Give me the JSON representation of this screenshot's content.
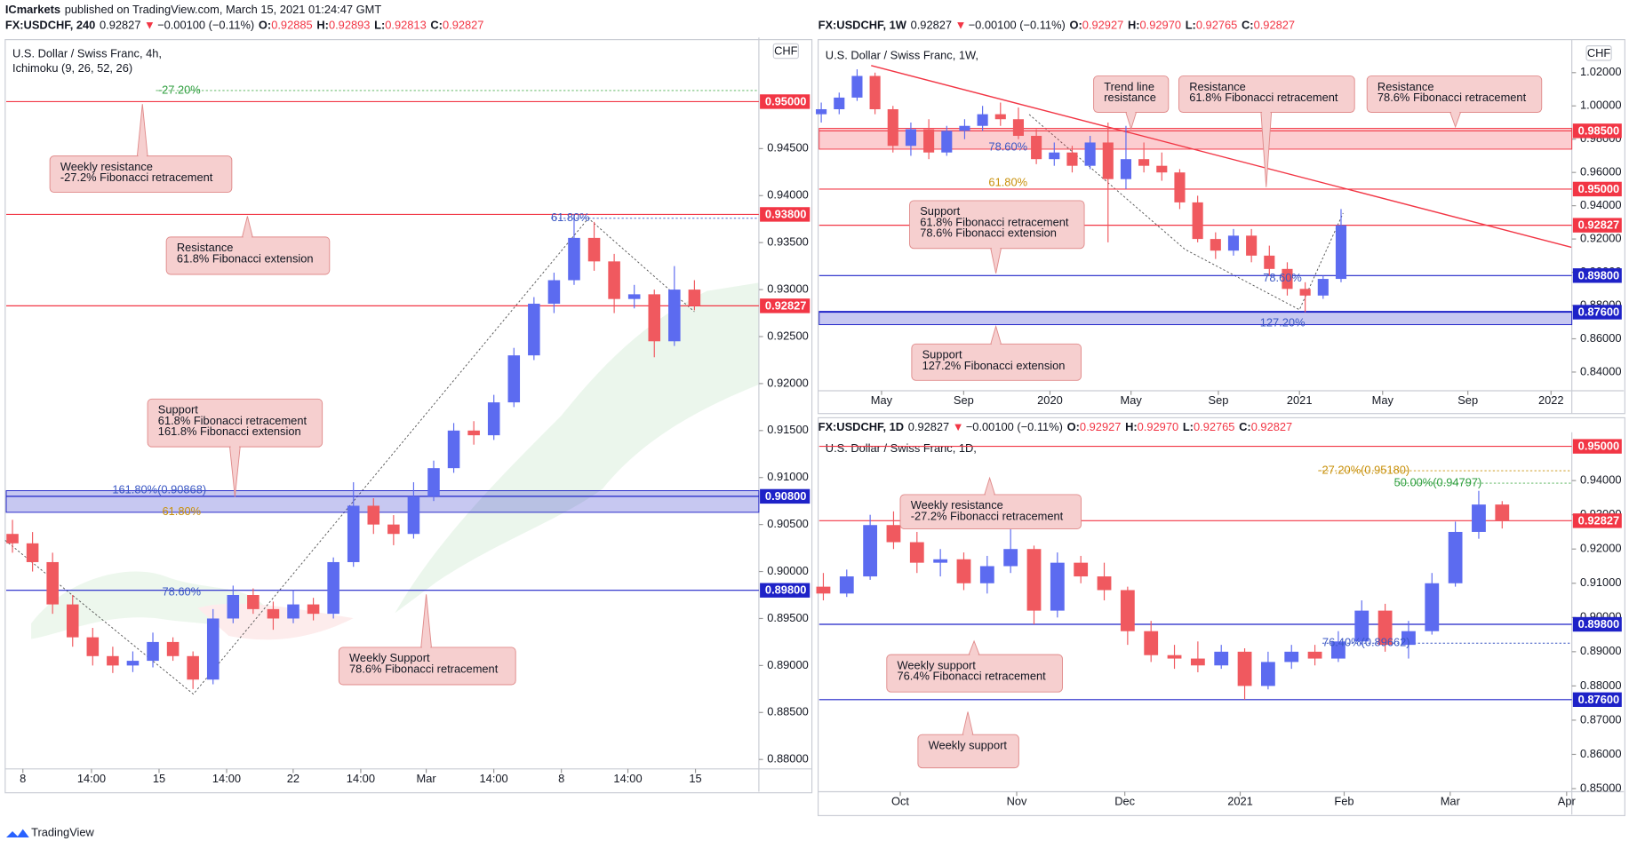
{
  "header": {
    "publisher": "ICmarkets",
    "published": "published on TradingView.com, March 15, 2021 01:24:47 GMT"
  },
  "footer": {
    "brand": "TradingView"
  },
  "charts": [
    {
      "symbol_line": {
        "symbol": "FX:USDCHF, 240",
        "price": "0.92827",
        "arrow": "▼",
        "change": "−0.00100 (−0.11%)",
        "ohlc": [
          {
            "label": "O:",
            "value": "0.92885"
          },
          {
            "label": "H:",
            "value": "0.92893"
          },
          {
            "label": "L:",
            "value": "0.92813"
          },
          {
            "label": "C:",
            "value": "0.92827"
          }
        ]
      },
      "title": "U.S. Dollar / Swiss Franc, 4h,",
      "indicator": "Ichimoku (9, 26, 52, 26)",
      "currency": "CHF",
      "ylim": [
        0.879,
        0.9566
      ],
      "yticks": [
        {
          "value": 0.88,
          "label": "0.88000"
        },
        {
          "value": 0.885,
          "label": "0.88500"
        },
        {
          "value": 0.89,
          "label": "0.89000"
        },
        {
          "value": 0.895,
          "label": "0.89500"
        },
        {
          "value": 0.9,
          "label": "0.90000"
        },
        {
          "value": 0.905,
          "label": "0.90500"
        },
        {
          "value": 0.91,
          "label": "0.91000"
        },
        {
          "value": 0.915,
          "label": "0.91500"
        },
        {
          "value": 0.92,
          "label": "0.92000"
        },
        {
          "value": 0.925,
          "label": "0.92500"
        },
        {
          "value": 0.93,
          "label": "0.93000"
        },
        {
          "value": 0.935,
          "label": "0.93500"
        },
        {
          "value": 0.94,
          "label": "0.94000"
        },
        {
          "value": 0.945,
          "label": "0.94500"
        }
      ],
      "xticks": [
        "8",
        "14:00",
        "15",
        "14:00",
        "22",
        "14:00",
        "Mar",
        "14:00",
        "8",
        "14:00",
        "15"
      ],
      "up_color": "#5c6bf0",
      "down_color": "#f0595f",
      "candles": [
        [
          0.904,
          0.9055,
          0.902,
          0.903
        ],
        [
          0.903,
          0.9042,
          0.9,
          0.901
        ],
        [
          0.901,
          0.902,
          0.8955,
          0.8965
        ],
        [
          0.8965,
          0.8975,
          0.892,
          0.893
        ],
        [
          0.893,
          0.894,
          0.89,
          0.891
        ],
        [
          0.891,
          0.892,
          0.8892,
          0.89
        ],
        [
          0.89,
          0.8915,
          0.8893,
          0.8905
        ],
        [
          0.8905,
          0.8935,
          0.8898,
          0.8925
        ],
        [
          0.8925,
          0.893,
          0.8905,
          0.891
        ],
        [
          0.891,
          0.8915,
          0.8875,
          0.8885
        ],
        [
          0.8885,
          0.896,
          0.888,
          0.895
        ],
        [
          0.895,
          0.8985,
          0.8945,
          0.8975
        ],
        [
          0.8975,
          0.8982,
          0.8955,
          0.896
        ],
        [
          0.896,
          0.8968,
          0.8938,
          0.895
        ],
        [
          0.895,
          0.898,
          0.8945,
          0.8965
        ],
        [
          0.8965,
          0.8972,
          0.8948,
          0.8955
        ],
        [
          0.8955,
          0.9015,
          0.895,
          0.901
        ],
        [
          0.901,
          0.9095,
          0.9005,
          0.907
        ],
        [
          0.907,
          0.9078,
          0.904,
          0.905
        ],
        [
          0.905,
          0.906,
          0.9028,
          0.904
        ],
        [
          0.904,
          0.9095,
          0.9035,
          0.908
        ],
        [
          0.908,
          0.9118,
          0.9075,
          0.911
        ],
        [
          0.911,
          0.9158,
          0.9105,
          0.915
        ],
        [
          0.915,
          0.916,
          0.9135,
          0.9145
        ],
        [
          0.9145,
          0.9188,
          0.914,
          0.918
        ],
        [
          0.918,
          0.9238,
          0.9175,
          0.923
        ],
        [
          0.923,
          0.9292,
          0.9225,
          0.9285
        ],
        [
          0.9285,
          0.9318,
          0.9275,
          0.931
        ],
        [
          0.931,
          0.938,
          0.9305,
          0.9355
        ],
        [
          0.9355,
          0.9372,
          0.932,
          0.933
        ],
        [
          0.933,
          0.9338,
          0.9275,
          0.929
        ],
        [
          0.929,
          0.9305,
          0.928,
          0.9295
        ],
        [
          0.9295,
          0.93,
          0.9228,
          0.9245
        ],
        [
          0.9245,
          0.9325,
          0.924,
          0.93
        ],
        [
          0.93,
          0.931,
          0.9278,
          0.92827
        ]
      ],
      "levels": [
        {
          "value": 0.95,
          "label": "0.95000",
          "color": "#f23645"
        },
        {
          "value": 0.938,
          "label": "0.93800",
          "color": "#f23645"
        },
        {
          "value": 0.92827,
          "label": "0.92827",
          "color": "#f23645"
        },
        {
          "value": 0.908,
          "label": "0.90800",
          "color": "#1e22c8",
          "band": [
            0.9063,
            0.9086
          ]
        },
        {
          "value": 0.898,
          "label": "0.89800",
          "color": "#1e22c8"
        }
      ],
      "fib_labels": [
        {
          "text": "-27.20%",
          "color": "#2e9e3e"
        },
        {
          "text": "61.80%",
          "color": "#3a57c4"
        },
        {
          "text": "161.80%(0.90868)",
          "color": "#3a57c4"
        },
        {
          "text": "61.80%",
          "color": "#c8900a"
        },
        {
          "text": "78.60%",
          "color": "#3a57c4"
        }
      ],
      "callouts": [
        {
          "lines": [
            "Weekly resistance",
            "-27.2% Fibonacci retracement"
          ]
        },
        {
          "lines": [
            "Resistance",
            "61.8% Fibonacci extension"
          ]
        },
        {
          "lines": [
            "Support",
            "61.8% Fibonacci retracement",
            "161.8% Fibonacci extension"
          ]
        },
        {
          "lines": [
            "Weekly Support",
            "78.6% Fibonacci retracement"
          ]
        }
      ]
    },
    {
      "symbol_line": {
        "symbol": "FX:USDCHF, 1W",
        "price": "0.92827",
        "arrow": "▼",
        "change": "−0.00100 (−0.11%)",
        "ohlc": [
          {
            "label": "O:",
            "value": "0.92927"
          },
          {
            "label": "H:",
            "value": "0.92970"
          },
          {
            "label": "L:",
            "value": "0.92765"
          },
          {
            "label": "C:",
            "value": "0.92827"
          }
        ]
      },
      "title": "U.S. Dollar / Swiss Franc, 1W,",
      "currency": "CHF",
      "ylim": [
        0.8294,
        1.0386
      ],
      "yticks": [
        {
          "value": 0.84,
          "label": "0.84000"
        },
        {
          "value": 0.86,
          "label": "0.86000"
        },
        {
          "value": 0.88,
          "label": "0.88000"
        },
        {
          "value": 0.9,
          "label": "0.90000"
        },
        {
          "value": 0.92,
          "label": "0.92000"
        },
        {
          "value": 0.94,
          "label": "0.94000"
        },
        {
          "value": 0.96,
          "label": "0.96000"
        },
        {
          "value": 0.98,
          "label": "0.98000"
        },
        {
          "value": 1,
          "label": "1.00000"
        },
        {
          "value": 1.02,
          "label": "1.02000"
        }
      ],
      "xticks": [
        "May",
        "Sep",
        "2020",
        "May",
        "Sep",
        "2021",
        "May",
        "Sep",
        "2022"
      ],
      "up_color": "#5c6bf0",
      "down_color": "#f0595f",
      "candles": [
        [
          0.995,
          1.002,
          0.99,
          0.998
        ],
        [
          0.998,
          1.008,
          0.995,
          1.005
        ],
        [
          1.005,
          1.022,
          1.003,
          1.018
        ],
        [
          1.018,
          1.02,
          0.995,
          0.998
        ],
        [
          0.998,
          1,
          0.972,
          0.976
        ],
        [
          0.976,
          0.99,
          0.97,
          0.986
        ],
        [
          0.986,
          0.992,
          0.968,
          0.972
        ],
        [
          0.972,
          0.988,
          0.97,
          0.985
        ],
        [
          0.985,
          0.992,
          0.98,
          0.988
        ],
        [
          0.988,
          1,
          0.985,
          0.995
        ],
        [
          0.995,
          1.002,
          0.988,
          0.992
        ],
        [
          0.992,
          0.999,
          0.98,
          0.982
        ],
        [
          0.982,
          0.986,
          0.965,
          0.968
        ],
        [
          0.968,
          0.978,
          0.964,
          0.972
        ],
        [
          0.972,
          0.976,
          0.96,
          0.964
        ],
        [
          0.964,
          0.982,
          0.962,
          0.978
        ],
        [
          0.978,
          0.99,
          0.918,
          0.956
        ],
        [
          0.956,
          0.988,
          0.95,
          0.968
        ],
        [
          0.968,
          0.978,
          0.96,
          0.964
        ],
        [
          0.964,
          0.972,
          0.955,
          0.96
        ],
        [
          0.96,
          0.962,
          0.938,
          0.942
        ],
        [
          0.942,
          0.946,
          0.918,
          0.92
        ],
        [
          0.92,
          0.924,
          0.908,
          0.913
        ],
        [
          0.913,
          0.926,
          0.91,
          0.922
        ],
        [
          0.922,
          0.926,
          0.906,
          0.91
        ],
        [
          0.91,
          0.916,
          0.898,
          0.902
        ],
        [
          0.902,
          0.906,
          0.886,
          0.89
        ],
        [
          0.89,
          0.894,
          0.876,
          0.886
        ],
        [
          0.886,
          0.898,
          0.884,
          0.896
        ],
        [
          0.896,
          0.938,
          0.894,
          0.92827
        ]
      ],
      "levels": [
        {
          "value": 0.985,
          "label": "0.98500",
          "color": "#f23645",
          "band": [
            0.974,
            0.9865
          ]
        },
        {
          "value": 0.95,
          "label": "0.95000",
          "color": "#f23645"
        },
        {
          "value": 0.92827,
          "label": "0.92827",
          "color": "#f23645"
        },
        {
          "value": 0.898,
          "label": "0.89800",
          "color": "#1e22c8"
        },
        {
          "value": 0.876,
          "label": "0.87600",
          "color": "#1e22c8",
          "band": [
            0.8685,
            0.8765
          ]
        }
      ],
      "fib_labels": [
        {
          "text": "78.60%",
          "color": "#3a57c4"
        },
        {
          "text": "61.80%",
          "color": "#c8900a"
        },
        {
          "text": "78.60%",
          "color": "#3a57c4"
        },
        {
          "text": "127.20%",
          "color": "#3a57c4"
        }
      ],
      "callouts": [
        {
          "lines": [
            "Trend line",
            "resistance"
          ]
        },
        {
          "lines": [
            "Resistance",
            "61.8% Fibonacci retracement"
          ]
        },
        {
          "lines": [
            "Resistance",
            "78.6% Fibonacci retracement"
          ]
        },
        {
          "lines": [
            "Support",
            "61.8% Fibonacci retracement",
            "78.6% Fibonacci extension"
          ]
        },
        {
          "lines": [
            "Support",
            "127.2% Fibonacci extension"
          ]
        }
      ]
    },
    {
      "symbol_line": {
        "symbol": "FX:USDCHF, 1D",
        "price": "0.92827",
        "arrow": "▼",
        "change": "−0.00100 (−0.11%)",
        "ohlc": [
          {
            "label": "O:",
            "value": "0.92927"
          },
          {
            "label": "H:",
            "value": "0.92970"
          },
          {
            "label": "L:",
            "value": "0.92765"
          },
          {
            "label": "C:",
            "value": "0.92827"
          }
        ]
      },
      "title": "U.S. Dollar / Swiss Franc, 1D,",
      "ylim": [
        0.8497,
        0.9535
      ],
      "yticks": [
        {
          "value": 0.85,
          "label": "0.85000"
        },
        {
          "value": 0.86,
          "label": "0.86000"
        },
        {
          "value": 0.87,
          "label": "0.87000"
        },
        {
          "value": 0.88,
          "label": "0.88000"
        },
        {
          "value": 0.89,
          "label": "0.89000"
        },
        {
          "value": 0.9,
          "label": "0.90000"
        },
        {
          "value": 0.91,
          "label": "0.91000"
        },
        {
          "value": 0.92,
          "label": "0.92000"
        },
        {
          "value": 0.93,
          "label": "0.93000"
        },
        {
          "value": 0.94,
          "label": "0.94000"
        }
      ],
      "xticks": [
        "Oct",
        "Nov",
        "Dec",
        "2021",
        "Feb",
        "Mar",
        "Apr"
      ],
      "up_color": "#5c6bf0",
      "down_color": "#f0595f",
      "candles": [
        [
          0.909,
          0.913,
          0.905,
          0.907
        ],
        [
          0.907,
          0.914,
          0.906,
          0.912
        ],
        [
          0.912,
          0.93,
          0.911,
          0.927
        ],
        [
          0.927,
          0.931,
          0.92,
          0.922
        ],
        [
          0.922,
          0.925,
          0.913,
          0.916
        ],
        [
          0.916,
          0.92,
          0.912,
          0.917
        ],
        [
          0.917,
          0.919,
          0.908,
          0.91
        ],
        [
          0.91,
          0.918,
          0.907,
          0.915
        ],
        [
          0.915,
          0.926,
          0.913,
          0.92
        ],
        [
          0.92,
          0.921,
          0.898,
          0.902
        ],
        [
          0.902,
          0.919,
          0.9,
          0.916
        ],
        [
          0.916,
          0.918,
          0.91,
          0.912
        ],
        [
          0.912,
          0.916,
          0.905,
          0.908
        ],
        [
          0.908,
          0.909,
          0.892,
          0.896
        ],
        [
          0.896,
          0.899,
          0.887,
          0.889
        ],
        [
          0.889,
          0.892,
          0.885,
          0.888
        ],
        [
          0.888,
          0.893,
          0.884,
          0.886
        ],
        [
          0.886,
          0.892,
          0.885,
          0.89
        ],
        [
          0.89,
          0.891,
          0.876,
          0.88
        ],
        [
          0.88,
          0.89,
          0.879,
          0.887
        ],
        [
          0.887,
          0.892,
          0.885,
          0.89
        ],
        [
          0.89,
          0.892,
          0.886,
          0.888
        ],
        [
          0.888,
          0.896,
          0.887,
          0.893
        ],
        [
          0.893,
          0.905,
          0.892,
          0.902
        ],
        [
          0.902,
          0.904,
          0.89,
          0.892
        ],
        [
          0.892,
          0.899,
          0.888,
          0.896
        ],
        [
          0.896,
          0.913,
          0.895,
          0.91
        ],
        [
          0.91,
          0.928,
          0.909,
          0.925
        ],
        [
          0.925,
          0.937,
          0.923,
          0.933
        ],
        [
          0.933,
          0.934,
          0.926,
          0.92827
        ]
      ],
      "levels": [
        {
          "value": 0.95,
          "label": "0.95000",
          "color": "#f23645"
        },
        {
          "value": 0.92827,
          "label": "0.92827",
          "color": "#f23645"
        },
        {
          "value": 0.898,
          "label": "0.89800",
          "color": "#1e22c8"
        },
        {
          "value": 0.876,
          "label": "0.87600",
          "color": "#1e22c8"
        }
      ],
      "fib_labels": [
        {
          "text": "-27.20%(0.95180)",
          "color": "#c8900a"
        },
        {
          "text": "50.00%(0.94797)",
          "color": "#2e9e3e"
        },
        {
          "text": "76.40%(0.89662)",
          "color": "#3a57c4"
        }
      ],
      "callouts": [
        {
          "lines": [
            "Weekly resistance",
            "-27.2% Fibonacci retracement"
          ]
        },
        {
          "lines": [
            "Weekly support",
            "76.4% Fibonacci retracement"
          ]
        },
        {
          "lines": [
            "Weekly support"
          ]
        }
      ]
    }
  ]
}
